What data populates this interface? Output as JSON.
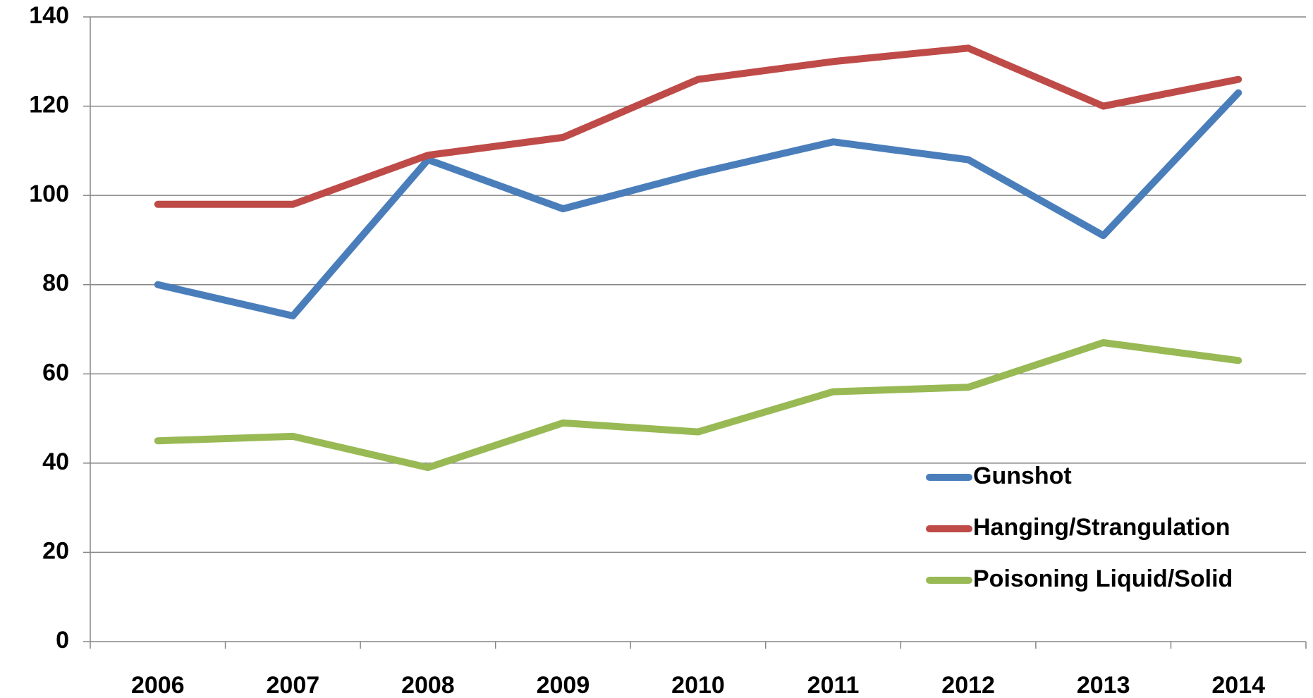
{
  "chart_data": {
    "type": "line",
    "categories": [
      "2006",
      "2007",
      "2008",
      "2009",
      "2010",
      "2011",
      "2012",
      "2013",
      "2014"
    ],
    "series": [
      {
        "name": "Gunshot",
        "color": "#4a7ebb",
        "values": [
          80,
          73,
          108,
          97,
          105,
          112,
          108,
          91,
          123
        ]
      },
      {
        "name": "Hanging/Strangulation",
        "color": "#be4b48",
        "values": [
          98,
          98,
          109,
          113,
          126,
          130,
          133,
          120,
          126
        ]
      },
      {
        "name": "Poisoning Liquid/Solid",
        "color": "#98b954",
        "values": [
          45,
          46,
          39,
          49,
          47,
          56,
          57,
          67,
          63
        ]
      }
    ],
    "ylim": [
      0,
      140
    ],
    "yticks": [
      0,
      20,
      40,
      60,
      80,
      100,
      120,
      140
    ],
    "grid": true,
    "legend": "lower right"
  }
}
